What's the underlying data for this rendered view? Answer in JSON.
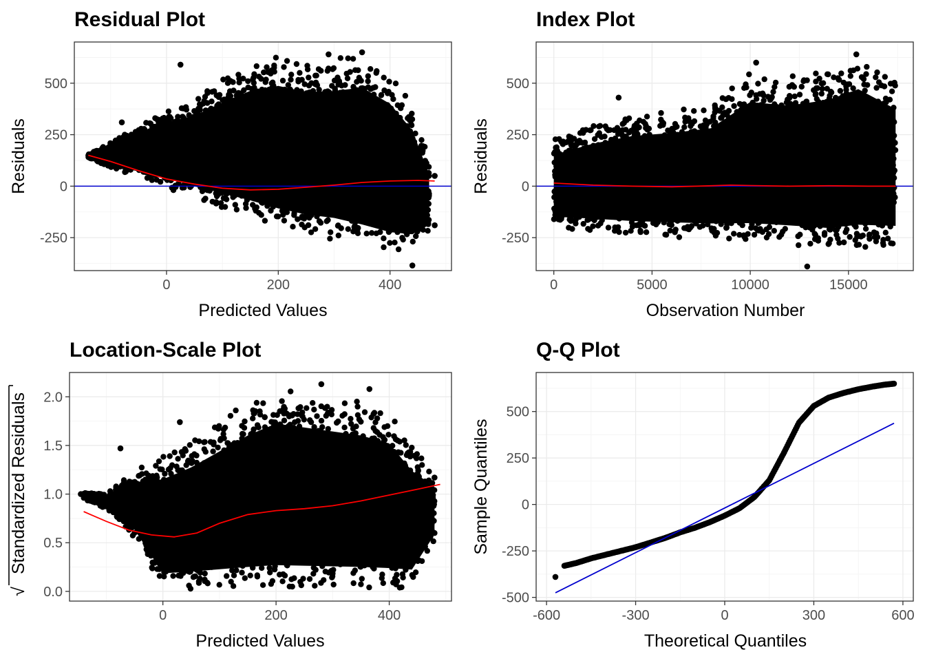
{
  "chart_data": [
    {
      "type": "scatter",
      "title": "Residual Plot",
      "xlabel": "Predicted Values",
      "ylabel": "Residuals",
      "xlim": [
        -165,
        510
      ],
      "ylim": [
        -410,
        700
      ],
      "x_ticks": [
        0,
        200,
        400
      ],
      "y_ticks": [
        -250,
        0,
        250,
        500
      ],
      "x_tick_labels": [
        "0",
        "200",
        "400"
      ],
      "y_tick_labels": [
        "-250",
        "0",
        "250",
        "500"
      ],
      "grid": true,
      "point_color": "#000000",
      "point_cloud_envelope": [
        {
          "x": -140,
          "ylo": 135,
          "yhi": 155
        },
        {
          "x": -100,
          "ylo": 90,
          "yhi": 210
        },
        {
          "x": -50,
          "ylo": 40,
          "yhi": 300
        },
        {
          "x": 0,
          "ylo": -10,
          "yhi": 380
        },
        {
          "x": 50,
          "ylo": -60,
          "yhi": 430
        },
        {
          "x": 100,
          "ylo": -110,
          "yhi": 520
        },
        {
          "x": 150,
          "ylo": -160,
          "yhi": 600
        },
        {
          "x": 200,
          "ylo": -210,
          "yhi": 640
        },
        {
          "x": 250,
          "ylo": -240,
          "yhi": 610
        },
        {
          "x": 300,
          "ylo": -260,
          "yhi": 620
        },
        {
          "x": 350,
          "ylo": -300,
          "yhi": 650
        },
        {
          "x": 400,
          "ylo": -330,
          "yhi": 560
        },
        {
          "x": 440,
          "ylo": -320,
          "yhi": 400
        },
        {
          "x": 470,
          "ylo": -230,
          "yhi": 120
        }
      ],
      "outliers": [
        {
          "x": -135,
          "y": 145
        },
        {
          "x": -120,
          "y": 140
        },
        {
          "x": -80,
          "y": 310
        },
        {
          "x": 25,
          "y": 590
        },
        {
          "x": 290,
          "y": 640
        },
        {
          "x": 350,
          "y": 650
        },
        {
          "x": 440,
          "y": -385
        },
        {
          "x": 480,
          "y": -190
        },
        {
          "x": 480,
          "y": 50
        }
      ],
      "series": [
        {
          "name": "",
          "color": "#ff0000",
          "x": [
            -140,
            -100,
            -50,
            0,
            50,
            100,
            150,
            200,
            250,
            300,
            350,
            400,
            450,
            480
          ],
          "y": [
            150,
            120,
            75,
            35,
            10,
            -10,
            -18,
            -15,
            -5,
            5,
            18,
            25,
            28,
            25
          ]
        }
      ],
      "reference_line": {
        "type": "horizontal",
        "y": 0,
        "color": "#0000cd"
      }
    },
    {
      "type": "scatter",
      "title": "Index Plot",
      "xlabel": "Observation Number",
      "ylabel": "Residuals",
      "xlim": [
        -900,
        18300
      ],
      "ylim": [
        -410,
        700
      ],
      "x_ticks": [
        0,
        5000,
        10000,
        15000
      ],
      "y_ticks": [
        -250,
        0,
        250,
        500
      ],
      "x_tick_labels": [
        "0",
        "5000",
        "10000",
        "15000"
      ],
      "y_tick_labels": [
        "-250",
        "0",
        "250",
        "500"
      ],
      "grid": true,
      "point_color": "#000000",
      "point_cloud_envelope": [
        {
          "x": 0,
          "ylo": -200,
          "yhi": 230
        },
        {
          "x": 2000,
          "ylo": -220,
          "yhi": 300
        },
        {
          "x": 4000,
          "ylo": -240,
          "yhi": 350
        },
        {
          "x": 6000,
          "ylo": -250,
          "yhi": 370
        },
        {
          "x": 8000,
          "ylo": -260,
          "yhi": 400
        },
        {
          "x": 10000,
          "ylo": -280,
          "yhi": 560
        },
        {
          "x": 12000,
          "ylo": -290,
          "yhi": 540
        },
        {
          "x": 14000,
          "ylo": -310,
          "yhi": 580
        },
        {
          "x": 15500,
          "ylo": -300,
          "yhi": 640
        },
        {
          "x": 17400,
          "ylo": -290,
          "yhi": 520
        }
      ],
      "outliers": [
        {
          "x": 12900,
          "y": -390
        },
        {
          "x": 15400,
          "y": 640
        },
        {
          "x": 10300,
          "y": 600
        },
        {
          "x": 3300,
          "y": 430
        }
      ],
      "series": [
        {
          "name": "",
          "color": "#ff0000",
          "x": [
            0,
            2000,
            4000,
            6000,
            8000,
            9000,
            10000,
            12000,
            14000,
            16000,
            17400
          ],
          "y": [
            15,
            5,
            0,
            -3,
            2,
            5,
            3,
            0,
            2,
            0,
            0
          ]
        }
      ],
      "reference_line": {
        "type": "horizontal",
        "y": 0,
        "color": "#0000cd"
      }
    },
    {
      "type": "scatter",
      "title": "Location-Scale Plot",
      "xlabel": "Predicted Values",
      "ylabel": "Standardized Residuals",
      "ylabel_prefix": "√",
      "xlim": [
        -165,
        510
      ],
      "ylim": [
        -0.1,
        2.25
      ],
      "x_ticks": [
        0,
        200,
        400
      ],
      "y_ticks": [
        0,
        0.5,
        1,
        1.5,
        2
      ],
      "x_tick_labels": [
        "0",
        "200",
        "400"
      ],
      "y_tick_labels": [
        "0.0",
        "0.5",
        "1.0",
        "1.5",
        "2.0"
      ],
      "grid": true,
      "point_color": "#000000",
      "point_cloud_envelope": [
        {
          "x": -140,
          "ylo": 0.95,
          "yhi": 1.02
        },
        {
          "x": -100,
          "ylo": 0.85,
          "yhi": 1.0
        },
        {
          "x": -50,
          "ylo": 0.55,
          "yhi": 1.25
        },
        {
          "x": 0,
          "ylo": 0.02,
          "yhi": 1.4
        },
        {
          "x": 50,
          "ylo": 0.02,
          "yhi": 1.55
        },
        {
          "x": 100,
          "ylo": 0.02,
          "yhi": 1.75
        },
        {
          "x": 150,
          "ylo": 0.02,
          "yhi": 1.95
        },
        {
          "x": 200,
          "ylo": 0.02,
          "yhi": 2.1
        },
        {
          "x": 250,
          "ylo": 0.02,
          "yhi": 2.05
        },
        {
          "x": 300,
          "ylo": 0.02,
          "yhi": 2.0
        },
        {
          "x": 350,
          "ylo": 0.02,
          "yhi": 1.95
        },
        {
          "x": 400,
          "ylo": 0.02,
          "yhi": 1.85
        },
        {
          "x": 440,
          "ylo": 0.05,
          "yhi": 1.5
        },
        {
          "x": 480,
          "ylo": 0.5,
          "yhi": 1.2
        }
      ],
      "outliers": [
        {
          "x": -145,
          "y": 1.0
        },
        {
          "x": -110,
          "y": 1.0
        },
        {
          "x": -75,
          "y": 1.47
        },
        {
          "x": 30,
          "y": 1.74
        },
        {
          "x": 280,
          "y": 2.13
        },
        {
          "x": 365,
          "y": 2.08
        },
        {
          "x": 480,
          "y": 1.17
        },
        {
          "x": 480,
          "y": 0.6
        }
      ],
      "series": [
        {
          "name": "",
          "color": "#ff0000",
          "x": [
            -140,
            -100,
            -60,
            -20,
            20,
            60,
            100,
            150,
            200,
            250,
            300,
            350,
            400,
            450,
            490
          ],
          "y": [
            0.82,
            0.72,
            0.63,
            0.58,
            0.56,
            0.6,
            0.7,
            0.79,
            0.83,
            0.85,
            0.88,
            0.93,
            0.99,
            1.05,
            1.1
          ]
        }
      ]
    },
    {
      "type": "scatter",
      "title": "Q-Q Plot",
      "xlabel": "Theoretical Quantiles",
      "ylabel": "Sample Quantiles",
      "xlim": [
        -635,
        635
      ],
      "ylim": [
        -520,
        710
      ],
      "x_ticks": [
        -600,
        -300,
        0,
        300,
        600
      ],
      "y_ticks": [
        -500,
        -250,
        0,
        250,
        500
      ],
      "x_tick_labels": [
        "-600",
        "-300",
        "0",
        "300",
        "600"
      ],
      "y_tick_labels": [
        "-500",
        "-250",
        "0",
        "250",
        "500"
      ],
      "grid": true,
      "point_color": "#000000",
      "sample_quantiles": {
        "x": [
          -570,
          -540,
          -500,
          -450,
          -400,
          -350,
          -300,
          -250,
          -200,
          -150,
          -100,
          -50,
          0,
          50,
          100,
          150,
          200,
          250,
          300,
          350,
          400,
          450,
          500,
          540,
          570
        ],
        "y": [
          -390,
          -330,
          -315,
          -290,
          -270,
          -250,
          -230,
          -205,
          -180,
          -150,
          -125,
          -95,
          -60,
          -20,
          40,
          130,
          280,
          440,
          530,
          575,
          600,
          620,
          635,
          645,
          650
        ]
      },
      "series": [
        {
          "name": "",
          "color": "#0000cd",
          "x": [
            -570,
            570
          ],
          "y": [
            -475,
            437
          ]
        }
      ]
    }
  ]
}
